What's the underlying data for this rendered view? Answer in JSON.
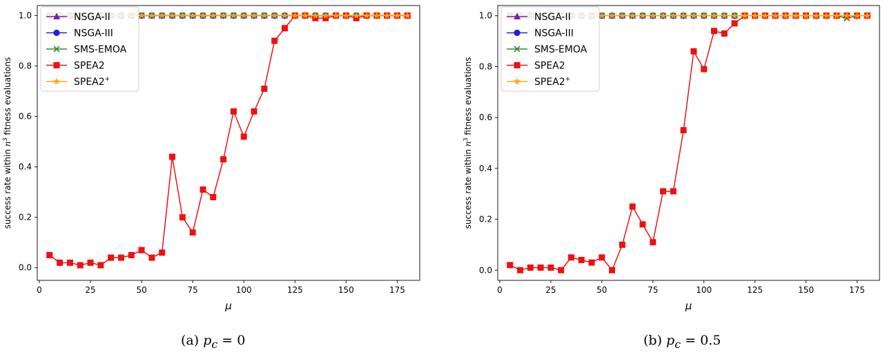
{
  "captions": {
    "a": {
      "prefix": "(a) ",
      "var": "p",
      "sub": "c",
      "rest": " = 0"
    },
    "b": {
      "prefix": "(b) ",
      "var": "p",
      "sub": "c",
      "rest": " = 0.5"
    }
  },
  "colors": {
    "NSGA-II": "#7b1fa2",
    "NSGA-III": "#1f1fe0",
    "SMS-EMOA": "#2e8b2e",
    "SPEA2": "#ee1111",
    "SPEA2+": "#ffa500"
  },
  "chart_data": [
    {
      "type": "line",
      "xlabel": "μ",
      "ylabel_parts": {
        "before": "success rate within ",
        "var": "n",
        "sup": "3",
        "after": " fitness evaluations"
      },
      "xlim": [
        -1,
        186
      ],
      "ylim": [
        -0.05,
        1.04
      ],
      "xticks": [
        0,
        25,
        50,
        75,
        100,
        125,
        150,
        175
      ],
      "yticks": [
        0.0,
        0.2,
        0.4,
        0.6,
        0.8,
        1.0
      ],
      "x": [
        5,
        10,
        15,
        20,
        25,
        30,
        35,
        40,
        45,
        50,
        55,
        60,
        65,
        70,
        75,
        80,
        85,
        90,
        95,
        100,
        105,
        110,
        115,
        120,
        125,
        130,
        135,
        140,
        145,
        150,
        155,
        160,
        165,
        170,
        175,
        180
      ],
      "series": [
        {
          "name": "NSGA-II",
          "marker": "triangle",
          "values": [
            1,
            1,
            1,
            1,
            1,
            1,
            1,
            1,
            1,
            1,
            1,
            1,
            1,
            1,
            1,
            1,
            1,
            1,
            1,
            1,
            1,
            1,
            1,
            1,
            1,
            1,
            1,
            1,
            1,
            1,
            1,
            1,
            1,
            1,
            1,
            1
          ]
        },
        {
          "name": "NSGA-III",
          "marker": "circle",
          "values": [
            1,
            1,
            1,
            1,
            1,
            1,
            1,
            1,
            1,
            1,
            1,
            1,
            1,
            1,
            1,
            1,
            1,
            1,
            1,
            1,
            1,
            1,
            1,
            1,
            1,
            1,
            1,
            1,
            1,
            1,
            1,
            1,
            1,
            1,
            1,
            1
          ]
        },
        {
          "name": "SMS-EMOA",
          "marker": "x",
          "values": [
            1,
            1,
            1,
            1,
            1,
            1,
            1,
            1,
            1,
            1,
            1,
            1,
            1,
            1,
            1,
            1,
            1,
            1,
            1,
            1,
            1,
            1,
            1,
            1,
            1,
            1,
            1,
            1,
            1,
            1,
            1,
            1,
            1,
            1,
            1,
            1
          ]
        },
        {
          "name": "SPEA2",
          "marker": "square",
          "values": [
            0.05,
            0.02,
            0.02,
            0.01,
            0.02,
            0.01,
            0.04,
            0.04,
            0.05,
            0.07,
            0.04,
            0.06,
            0.44,
            0.2,
            0.14,
            0.31,
            0.28,
            0.43,
            0.62,
            0.52,
            0.62,
            0.71,
            0.9,
            0.95,
            1.0,
            1.0,
            0.99,
            0.99,
            1.0,
            1.0,
            0.99,
            1.0,
            1.0,
            1.0,
            1.0,
            1.0
          ]
        },
        {
          "name": "SPEA2+",
          "marker": "star",
          "values": [
            1,
            1,
            1,
            1,
            1,
            1,
            1,
            1,
            1,
            1,
            1,
            1,
            1,
            1,
            1,
            1,
            1,
            1,
            1,
            1,
            1,
            1,
            1,
            1,
            1,
            1,
            1,
            1,
            1,
            1,
            1,
            1,
            1,
            1,
            1,
            1
          ]
        }
      ],
      "legend": "top-left",
      "grid": false
    },
    {
      "type": "line",
      "xlabel": "μ",
      "ylabel_parts": {
        "before": "success rate within ",
        "var": "n",
        "sup": "3",
        "after": " fitness evaluations"
      },
      "xlim": [
        -1,
        186
      ],
      "ylim": [
        -0.04,
        1.04
      ],
      "xticks": [
        0,
        25,
        50,
        75,
        100,
        125,
        150,
        175
      ],
      "yticks": [
        0.0,
        0.2,
        0.4,
        0.6,
        0.8,
        1.0
      ],
      "x": [
        5,
        10,
        15,
        20,
        25,
        30,
        35,
        40,
        45,
        50,
        55,
        60,
        65,
        70,
        75,
        80,
        85,
        90,
        95,
        100,
        105,
        110,
        115,
        120,
        125,
        130,
        135,
        140,
        145,
        150,
        155,
        160,
        165,
        170,
        175,
        180
      ],
      "series": [
        {
          "name": "NSGA-II",
          "marker": "triangle",
          "values": [
            1,
            1,
            1,
            1,
            1,
            1,
            1,
            1,
            1,
            1,
            1,
            1,
            1,
            1,
            1,
            1,
            1,
            1,
            1,
            1,
            1,
            1,
            1,
            1,
            1,
            1,
            1,
            1,
            1,
            1,
            1,
            1,
            1,
            1,
            1,
            1
          ]
        },
        {
          "name": "NSGA-III",
          "marker": "circle",
          "values": [
            1,
            1,
            1,
            1,
            1,
            1,
            1,
            1,
            1,
            1,
            1,
            1,
            1,
            1,
            1,
            1,
            1,
            1,
            1,
            1,
            1,
            1,
            1,
            1,
            1,
            1,
            1,
            1,
            1,
            1,
            1,
            1,
            1,
            1,
            1,
            1
          ]
        },
        {
          "name": "SMS-EMOA",
          "marker": "x",
          "values": [
            1,
            1,
            1,
            1,
            1,
            1,
            1,
            1,
            1,
            1,
            1,
            1,
            1,
            1,
            1,
            1,
            1,
            1,
            1,
            1,
            1,
            1,
            1,
            1,
            1,
            1,
            1,
            1,
            1,
            1,
            1,
            1,
            1,
            0.99,
            1,
            1
          ]
        },
        {
          "name": "SPEA2",
          "marker": "square",
          "values": [
            0.02,
            0.0,
            0.01,
            0.01,
            0.01,
            0.0,
            0.05,
            0.04,
            0.03,
            0.05,
            0.0,
            0.1,
            0.25,
            0.18,
            0.11,
            0.31,
            0.31,
            0.55,
            0.86,
            0.79,
            0.94,
            0.93,
            0.97,
            1.0,
            1.0,
            1.0,
            1.0,
            1.0,
            1.0,
            1.0,
            1.0,
            1.0,
            1.0,
            1.0,
            1.0,
            1.0
          ]
        },
        {
          "name": "SPEA2+",
          "marker": "star",
          "values": [
            1,
            1,
            1,
            1,
            1,
            1,
            1,
            1,
            1,
            1,
            1,
            1,
            1,
            1,
            1,
            1,
            1,
            1,
            1,
            1,
            1,
            1,
            1,
            1,
            1,
            1,
            1,
            1,
            1,
            1,
            1,
            1,
            1,
            1,
            1,
            1
          ]
        }
      ],
      "legend": "top-left",
      "grid": false
    }
  ]
}
